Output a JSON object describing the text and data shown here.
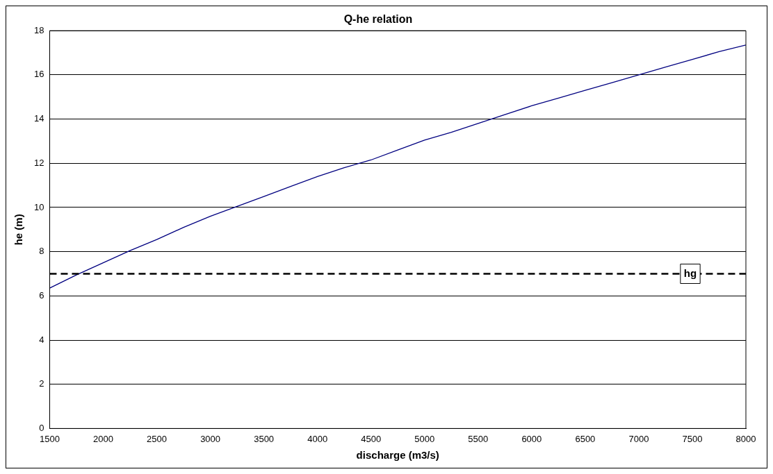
{
  "chart_data": {
    "type": "line",
    "title": "Q-he relation",
    "xlabel": "discharge (m3/s)",
    "ylabel": "he (m)",
    "x": [
      1500,
      1750,
      2000,
      2250,
      2500,
      2750,
      3000,
      3250,
      3500,
      3750,
      4000,
      4250,
      4500,
      4750,
      5000,
      5250,
      5500,
      5750,
      6000,
      6250,
      6500,
      6750,
      7000,
      7250,
      7500,
      7750,
      8000
    ],
    "series": [
      {
        "color": "#000080",
        "values": [
          6.35,
          6.95,
          7.5,
          8.05,
          8.55,
          9.1,
          9.6,
          10.05,
          10.5,
          10.95,
          11.4,
          11.8,
          12.15,
          12.6,
          13.05,
          13.4,
          13.8,
          14.2,
          14.6,
          14.95,
          15.3,
          15.65,
          16.0,
          16.35,
          16.7,
          17.05,
          17.35
        ]
      }
    ],
    "xlim": [
      1500,
      8000
    ],
    "xticks": [
      1500,
      2000,
      2500,
      3000,
      3500,
      4000,
      4500,
      5000,
      5500,
      6000,
      6500,
      7000,
      7500,
      8000
    ],
    "ylim": [
      0,
      18
    ],
    "yticks": [
      0,
      2,
      4,
      6,
      8,
      10,
      12,
      14,
      16,
      18
    ],
    "grid": "y",
    "legend": false,
    "marker": "none",
    "line_style": "solid",
    "ref_lines": [
      {
        "axis": "y",
        "value": 7,
        "label": "hg",
        "color": "#000000",
        "line_style": "dashed"
      }
    ]
  }
}
